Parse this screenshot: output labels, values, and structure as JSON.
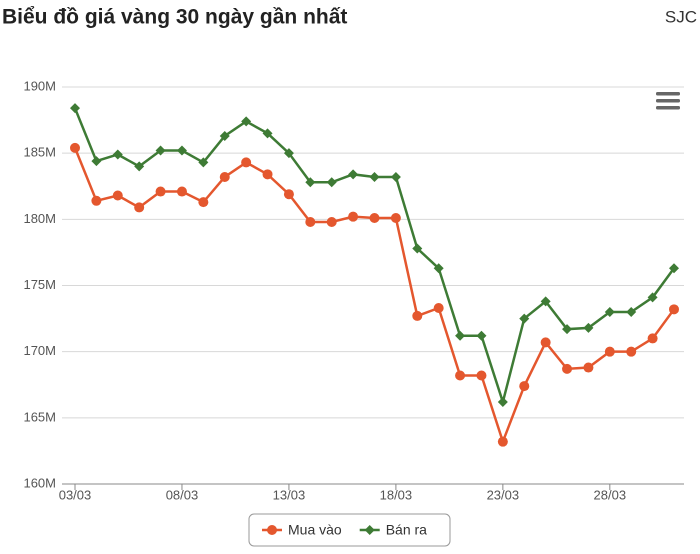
{
  "chart_data": {
    "type": "line",
    "title": "Biểu đồ giá vàng 30 ngày gần nhất",
    "subtitle": "SJC",
    "categories": [
      "03/03",
      null,
      null,
      null,
      null,
      "08/03",
      null,
      null,
      null,
      null,
      "13/03",
      null,
      null,
      null,
      null,
      "18/03",
      null,
      null,
      null,
      null,
      "23/03",
      null,
      null,
      null,
      null,
      "28/03",
      null,
      null,
      null
    ],
    "series": [
      {
        "name": "Mua vào",
        "color": "#e4572e",
        "marker": "circle",
        "values": [
          185.4,
          181.4,
          181.8,
          180.9,
          182.1,
          182.1,
          181.3,
          183.2,
          184.3,
          183.4,
          181.9,
          179.8,
          179.8,
          180.2,
          180.1,
          180.1,
          172.7,
          173.3,
          168.2,
          168.2,
          163.2,
          167.4,
          170.7,
          168.7,
          168.8,
          170.0,
          170.0,
          171.0,
          173.2
        ]
      },
      {
        "name": "Bán ra",
        "color": "#3e7b35",
        "marker": "diamond",
        "values": [
          188.4,
          184.4,
          184.9,
          184.0,
          185.2,
          185.2,
          184.3,
          186.3,
          187.4,
          186.5,
          185.0,
          182.8,
          182.8,
          183.4,
          183.2,
          183.2,
          177.8,
          176.3,
          171.2,
          171.2,
          166.2,
          172.5,
          173.8,
          171.7,
          171.8,
          173.0,
          173.0,
          174.1,
          176.3
        ]
      }
    ],
    "ylim": [
      160,
      190
    ],
    "yticks": [
      {
        "value": 160,
        "label": "160M"
      },
      {
        "value": 165,
        "label": "165M"
      },
      {
        "value": 170,
        "label": "170M"
      },
      {
        "value": 175,
        "label": "175M"
      },
      {
        "value": 180,
        "label": "180M"
      },
      {
        "value": 185,
        "label": "185M"
      },
      {
        "value": 190,
        "label": "190M"
      }
    ],
    "grid": true
  }
}
